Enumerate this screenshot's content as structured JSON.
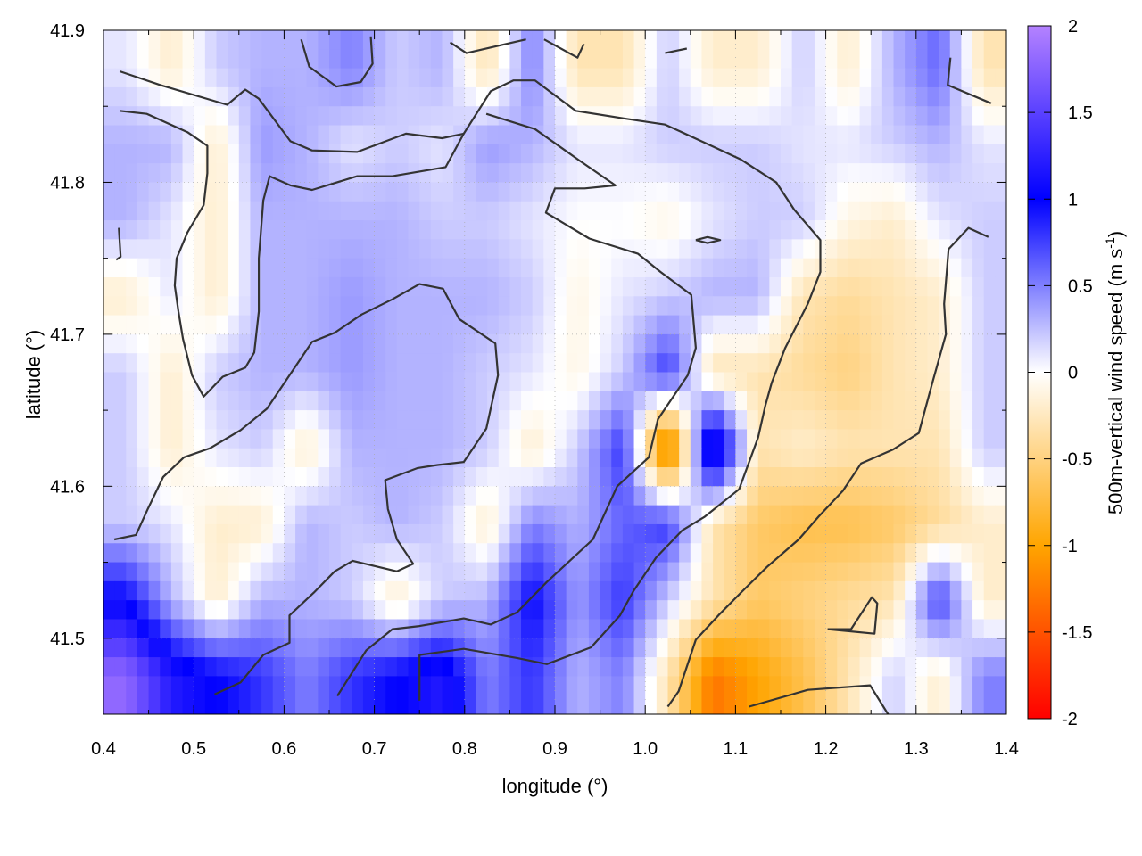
{
  "chart_data": {
    "type": "heatmap",
    "xlabel": "longitude (°)",
    "ylabel": "latitude (°)",
    "colorbar_label": {
      "main": "500m-vertical wind speed (m s",
      "sup": "-1",
      "end": ")"
    },
    "xlim": [
      0.4,
      1.4
    ],
    "ylim": [
      41.45,
      41.9
    ],
    "clim": [
      -2,
      2
    ],
    "grid": true,
    "x_ticks": [
      "0.4",
      "0.5",
      "0.6",
      "0.7",
      "0.8",
      "0.9",
      "1.0",
      "1.1",
      "1.2",
      "1.3",
      "1.4"
    ],
    "y_ticks": [
      "41.5",
      "41.6",
      "41.7",
      "41.8",
      "41.9"
    ],
    "colorbar_ticks": [
      "-2",
      "-1.5",
      "-1",
      "-0.5",
      "0",
      "0.5",
      "1",
      "1.5",
      "2"
    ],
    "colormap": [
      {
        "value": -2,
        "color": "#ff0000"
      },
      {
        "value": -1,
        "color": "#ffa500"
      },
      {
        "value": 0,
        "color": "#ffffff"
      },
      {
        "value": 1,
        "color": "#0000ff"
      },
      {
        "value": 2,
        "color": "#b482ff"
      }
    ],
    "contour_color": "#333333",
    "grid_lon_centers": [
      0.425,
      0.475,
      0.525,
      0.575,
      0.625,
      0.675,
      0.725,
      0.775,
      0.825,
      0.875,
      0.925,
      0.975,
      1.025,
      1.075,
      1.125,
      1.175,
      1.225,
      1.275,
      1.325,
      1.375
    ],
    "grid_lat_centers": [
      41.875,
      41.825,
      41.775,
      41.725,
      41.675,
      41.625,
      41.575,
      41.525,
      41.475
    ],
    "values": [
      [
        0.1,
        -0.2,
        0.2,
        0.3,
        0.3,
        0.5,
        0.2,
        0.3,
        -0.3,
        0.5,
        -0.3,
        -0.3,
        0.2,
        -0.2,
        -0.2,
        0.2,
        -0.2,
        0.3,
        0.6,
        -0.3
      ],
      [
        0.3,
        0.3,
        -0.2,
        0.4,
        0.3,
        0.1,
        0.2,
        0.1,
        0.4,
        0.3,
        0.1,
        0.1,
        0.2,
        0.2,
        0.2,
        0.1,
        0.1,
        0.2,
        0.3,
        0.1
      ],
      [
        0.3,
        0.1,
        -0.2,
        0.3,
        0.3,
        0.3,
        0.3,
        0.2,
        0.2,
        0.1,
        0.0,
        0.0,
        -0.1,
        0.1,
        0.2,
        0.2,
        -0.1,
        -0.2,
        0.1,
        0.2
      ],
      [
        -0.2,
        0.1,
        -0.2,
        0.3,
        0.3,
        0.4,
        0.3,
        0.3,
        0.3,
        0.2,
        -0.1,
        0.1,
        0.2,
        0.3,
        0.3,
        -0.3,
        -0.4,
        -0.3,
        -0.2,
        0.2
      ],
      [
        0.2,
        -0.2,
        0.2,
        0.3,
        0.3,
        0.4,
        0.3,
        0.3,
        0.2,
        0.1,
        -0.1,
        0.2,
        0.8,
        -0.3,
        -0.3,
        -0.4,
        -0.5,
        -0.3,
        -0.2,
        0.2
      ],
      [
        0.2,
        -0.2,
        0.1,
        0.2,
        -0.2,
        0.3,
        0.3,
        0.3,
        0.2,
        -0.2,
        0.2,
        0.8,
        -1.5,
        1.5,
        -0.3,
        -0.2,
        -0.3,
        -0.3,
        -0.3,
        0.2
      ],
      [
        0.2,
        0.1,
        -0.2,
        -0.2,
        0.3,
        0.2,
        0.3,
        0.2,
        -0.2,
        0.5,
        0.3,
        0.6,
        0.8,
        -0.3,
        -0.6,
        -0.7,
        -0.7,
        -0.6,
        -0.4,
        -0.2
      ],
      [
        1.0,
        0.3,
        -0.2,
        0.3,
        0.3,
        0.2,
        -0.2,
        0.2,
        0.3,
        1.0,
        0.4,
        0.8,
        0.2,
        -0.3,
        -0.6,
        -0.5,
        -0.4,
        -0.3,
        0.8,
        -0.2
      ],
      [
        1.8,
        1.2,
        1.0,
        0.8,
        0.5,
        0.8,
        1.0,
        1.2,
        0.5,
        0.8,
        0.3,
        0.5,
        -0.3,
        -1.3,
        -1.0,
        -0.7,
        -0.3,
        0.2,
        -0.2,
        0.5
      ]
    ],
    "contours": [
      [
        [
          0.418,
          41.873
        ],
        [
          0.463,
          41.864
        ],
        [
          0.537,
          41.851
        ],
        [
          0.557,
          41.861
        ],
        [
          0.572,
          41.855
        ],
        [
          0.607,
          41.827
        ],
        [
          0.631,
          41.821
        ],
        [
          0.681,
          41.82
        ],
        [
          0.735,
          41.832
        ],
        [
          0.775,
          41.829
        ],
        [
          0.799,
          41.832
        ],
        [
          0.829,
          41.86
        ],
        [
          0.854,
          41.867
        ],
        [
          0.878,
          41.867
        ],
        [
          0.923,
          41.847
        ],
        [
          0.977,
          41.842
        ],
        [
          1.022,
          41.838
        ],
        [
          1.066,
          41.826
        ],
        [
          1.106,
          41.815
        ],
        [
          1.145,
          41.8
        ],
        [
          1.165,
          41.782
        ],
        [
          1.194,
          41.762
        ],
        [
          1.194,
          41.741
        ],
        [
          1.18,
          41.72
        ],
        [
          1.155,
          41.691
        ],
        [
          1.14,
          41.668
        ],
        [
          1.133,
          41.653
        ],
        [
          1.125,
          41.632
        ],
        [
          1.104,
          41.598
        ],
        [
          1.066,
          41.58
        ],
        [
          1.041,
          41.571
        ],
        [
          1.012,
          41.553
        ],
        [
          0.987,
          41.531
        ],
        [
          0.972,
          41.515
        ],
        [
          0.94,
          41.494
        ],
        [
          0.891,
          41.483
        ],
        [
          0.858,
          41.487
        ],
        [
          0.799,
          41.493
        ],
        [
          0.75,
          41.489
        ],
        [
          0.75,
          41.459
        ]
      ],
      [
        [
          0.418,
          41.847
        ],
        [
          0.448,
          41.845
        ],
        [
          0.493,
          41.833
        ],
        [
          0.515,
          41.824
        ],
        [
          0.515,
          41.806
        ],
        [
          0.511,
          41.785
        ],
        [
          0.493,
          41.767
        ],
        [
          0.481,
          41.75
        ],
        [
          0.479,
          41.732
        ],
        [
          0.483,
          41.715
        ],
        [
          0.488,
          41.697
        ],
        [
          0.498,
          41.673
        ],
        [
          0.511,
          41.659
        ],
        [
          0.532,
          41.672
        ],
        [
          0.557,
          41.678
        ],
        [
          0.567,
          41.688
        ],
        [
          0.572,
          41.715
        ],
        [
          0.572,
          41.75
        ],
        [
          0.577,
          41.788
        ],
        [
          0.584,
          41.804
        ],
        [
          0.607,
          41.798
        ],
        [
          0.631,
          41.795
        ],
        [
          0.681,
          41.804
        ],
        [
          0.72,
          41.804
        ],
        [
          0.779,
          41.81
        ],
        [
          0.799,
          41.832
        ]
      ],
      [
        [
          0.412,
          41.565
        ],
        [
          0.436,
          41.568
        ],
        [
          0.449,
          41.585
        ],
        [
          0.466,
          41.606
        ],
        [
          0.489,
          41.619
        ],
        [
          0.518,
          41.625
        ],
        [
          0.552,
          41.637
        ],
        [
          0.581,
          41.651
        ],
        [
          0.606,
          41.673
        ],
        [
          0.631,
          41.695
        ],
        [
          0.656,
          41.701
        ],
        [
          0.686,
          41.713
        ],
        [
          0.72,
          41.723
        ],
        [
          0.75,
          41.733
        ],
        [
          0.776,
          41.73
        ],
        [
          0.794,
          41.71
        ],
        [
          0.834,
          41.694
        ],
        [
          0.837,
          41.673
        ],
        [
          0.824,
          41.638
        ],
        [
          0.799,
          41.616
        ],
        [
          0.77,
          41.614
        ],
        [
          0.748,
          41.612
        ],
        [
          0.712,
          41.604
        ],
        [
          0.715,
          41.585
        ],
        [
          0.725,
          41.565
        ],
        [
          0.743,
          41.549
        ],
        [
          0.725,
          41.544
        ],
        [
          0.676,
          41.551
        ],
        [
          0.656,
          41.544
        ],
        [
          0.633,
          41.53
        ],
        [
          0.606,
          41.515
        ],
        [
          0.606,
          41.497
        ],
        [
          0.577,
          41.489
        ],
        [
          0.552,
          41.471
        ],
        [
          0.523,
          41.463
        ]
      ],
      [
        [
          1.025,
          41.455
        ],
        [
          1.037,
          41.465
        ],
        [
          1.056,
          41.499
        ],
        [
          1.081,
          41.515
        ],
        [
          1.106,
          41.53
        ],
        [
          1.135,
          41.547
        ],
        [
          1.17,
          41.565
        ],
        [
          1.192,
          41.58
        ],
        [
          1.219,
          41.597
        ],
        [
          1.239,
          41.615
        ],
        [
          1.274,
          41.624
        ],
        [
          1.303,
          41.635
        ],
        [
          1.318,
          41.668
        ],
        [
          1.333,
          41.7
        ],
        [
          1.331,
          41.72
        ],
        [
          1.336,
          41.756
        ],
        [
          1.358,
          41.77
        ],
        [
          1.38,
          41.764
        ]
      ],
      [
        [
          1.115,
          41.455
        ],
        [
          1.18,
          41.466
        ],
        [
          1.249,
          41.469
        ],
        [
          1.269,
          41.45
        ]
      ],
      [
        [
          1.202,
          41.506
        ],
        [
          1.228,
          41.506
        ],
        [
          1.251,
          41.527
        ],
        [
          1.257,
          41.523
        ],
        [
          1.254,
          41.503
        ],
        [
          1.202,
          41.506
        ]
      ],
      [
        [
          1.056,
          41.762
        ],
        [
          1.069,
          41.764
        ],
        [
          1.083,
          41.762
        ],
        [
          1.069,
          41.76
        ],
        [
          1.056,
          41.762
        ]
      ],
      [
        [
          0.824,
          41.845
        ],
        [
          0.878,
          41.835
        ],
        [
          0.928,
          41.814
        ],
        [
          0.967,
          41.798
        ],
        [
          0.933,
          41.796
        ],
        [
          0.9,
          41.796
        ],
        [
          0.89,
          41.78
        ],
        [
          0.938,
          41.763
        ],
        [
          0.992,
          41.753
        ],
        [
          1.017,
          41.741
        ],
        [
          1.051,
          41.726
        ],
        [
          1.056,
          41.691
        ],
        [
          1.047,
          41.673
        ],
        [
          1.014,
          41.644
        ],
        [
          1.004,
          41.619
        ],
        [
          0.969,
          41.6
        ],
        [
          0.942,
          41.565
        ],
        [
          0.891,
          41.537
        ],
        [
          0.858,
          41.517
        ],
        [
          0.829,
          41.509
        ],
        [
          0.799,
          41.513
        ],
        [
          0.75,
          41.508
        ],
        [
          0.72,
          41.506
        ],
        [
          0.691,
          41.492
        ],
        [
          0.659,
          41.462
        ]
      ],
      [
        [
          0.619,
          41.894
        ],
        [
          0.628,
          41.876
        ],
        [
          0.658,
          41.863
        ],
        [
          0.685,
          41.866
        ],
        [
          0.698,
          41.878
        ],
        [
          0.696,
          41.896
        ]
      ],
      [
        [
          0.784,
          41.892
        ],
        [
          0.802,
          41.885
        ],
        [
          0.868,
          41.894
        ]
      ],
      [
        [
          0.888,
          41.894
        ],
        [
          0.925,
          41.882
        ],
        [
          0.932,
          41.891
        ]
      ],
      [
        [
          1.022,
          41.885
        ],
        [
          1.046,
          41.888
        ]
      ],
      [
        [
          1.338,
          41.882
        ],
        [
          1.335,
          41.864
        ],
        [
          1.383,
          41.852
        ]
      ],
      [
        [
          0.417,
          41.77
        ],
        [
          0.419,
          41.751
        ],
        [
          0.414,
          41.749
        ]
      ]
    ]
  }
}
